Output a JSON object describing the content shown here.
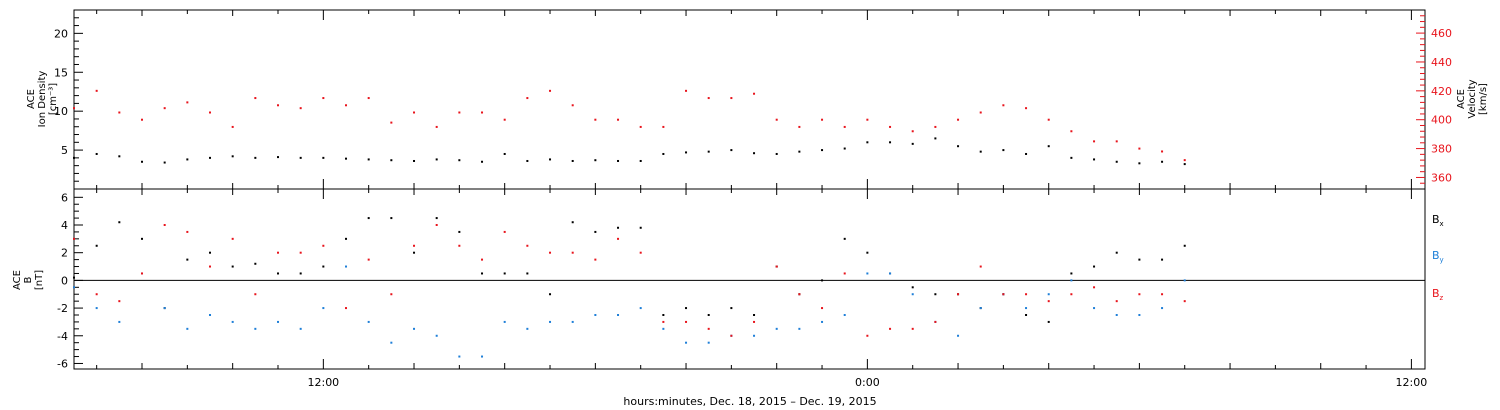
{
  "colors": {
    "black": "#000000",
    "red": "#e8141c",
    "blue": "#1e7fd8"
  },
  "footer_label": "hours:minutes, Dec. 18, 2015 – Dec. 19, 2015",
  "time_ticks": [
    {
      "hour": 12,
      "label": "12:00"
    },
    {
      "hour": 24,
      "label": "0:00"
    },
    {
      "hour": 36,
      "label": "12:00"
    }
  ],
  "chart_data": [
    {
      "type": "scatter",
      "panel": "top",
      "x_unit": "hours since Dec. 18, 2015 00:00",
      "xlim": [
        6.5,
        36.3
      ],
      "ylabel_left": [
        "ACE",
        "Ion Density",
        "[cm⁻³]"
      ],
      "ylim_left": [
        0,
        23
      ],
      "yticks_left": [
        5,
        10,
        15,
        20
      ],
      "ylabel_right": [
        "ACE",
        "Velocity",
        "[km/s]"
      ],
      "ylim_right": [
        352,
        476
      ],
      "yticks_right": [
        360,
        380,
        400,
        420,
        440,
        460
      ],
      "series": [
        {
          "axis": "left",
          "color": "#000000",
          "x": [
            6.5,
            7,
            7.5,
            8,
            8.5,
            9,
            9.5,
            10,
            10.5,
            11,
            11.5,
            12,
            12.5,
            13,
            13.5,
            14,
            14.5,
            15,
            15.5,
            16,
            16.5,
            17,
            17.5,
            18,
            18.5,
            19,
            19.5,
            20,
            20.5,
            21,
            21.5,
            22,
            22.5,
            23,
            23.5,
            24,
            24.5,
            25,
            25.5,
            26,
            26.5,
            27,
            27.5,
            28,
            28.5,
            29,
            29.5,
            30,
            30.5,
            31
          ],
          "values": [
            4.0,
            4.5,
            4.2,
            3.5,
            3.4,
            3.8,
            4.0,
            4.2,
            4.0,
            4.1,
            4.0,
            4.0,
            3.9,
            3.8,
            3.7,
            3.6,
            3.8,
            3.7,
            3.5,
            4.5,
            3.6,
            3.8,
            3.6,
            3.7,
            3.6,
            3.6,
            4.5,
            4.7,
            4.8,
            5.0,
            4.6,
            4.5,
            4.8,
            5.0,
            5.2,
            6.0,
            6.0,
            5.8,
            6.5,
            5.5,
            4.8,
            5.0,
            4.5,
            5.5,
            4.0,
            3.8,
            3.5,
            3.3,
            3.5,
            3.2
          ]
        },
        {
          "axis": "right",
          "color": "#e8141c",
          "x": [
            6.5,
            7,
            7.5,
            8,
            8.5,
            9,
            9.5,
            10,
            10.5,
            11,
            11.5,
            12,
            12.5,
            13,
            13.5,
            14,
            14.5,
            15,
            15.5,
            16,
            16.5,
            17,
            17.5,
            18,
            18.5,
            19,
            19.5,
            20,
            20.5,
            21,
            21.5,
            22,
            22.5,
            23,
            23.5,
            24,
            24.5,
            25,
            25.5,
            26,
            26.5,
            27,
            27.5,
            28,
            28.5,
            29,
            29.5,
            30,
            30.5,
            31
          ],
          "values": [
            408,
            420,
            405,
            400,
            408,
            412,
            405,
            395,
            415,
            410,
            408,
            415,
            410,
            415,
            398,
            405,
            395,
            405,
            405,
            400,
            415,
            420,
            410,
            400,
            400,
            395,
            395,
            420,
            415,
            415,
            418,
            400,
            395,
            400,
            395,
            400,
            395,
            392,
            395,
            400,
            405,
            410,
            408,
            400,
            392,
            385,
            385,
            380,
            378,
            372
          ]
        }
      ]
    },
    {
      "type": "scatter",
      "panel": "bottom",
      "x_unit": "hours since Dec. 18, 2015 00:00",
      "xlim": [
        6.5,
        36.3
      ],
      "ylabel": [
        "ACE",
        "B",
        "[nT]"
      ],
      "ylim": [
        -6.4,
        6.6
      ],
      "yticks": [
        -6,
        -4,
        -2,
        0,
        2,
        4,
        6
      ],
      "zero_line": true,
      "series": [
        {
          "name": "Bx",
          "color": "#000000",
          "x": [
            6.5,
            7,
            7.5,
            8,
            8.5,
            9,
            9.5,
            10,
            10.5,
            11,
            11.5,
            12,
            12.5,
            13,
            13.5,
            14,
            14.5,
            15,
            15.5,
            16,
            16.5,
            17,
            17.5,
            18,
            18.5,
            19,
            19.5,
            20,
            20.5,
            21,
            21.5,
            22,
            22.5,
            23,
            23.5,
            24,
            24.5,
            25,
            25.5,
            26,
            26.5,
            27,
            27.5,
            28,
            28.5,
            29,
            29.5,
            30,
            30.5,
            31
          ],
          "values": [
            0.2,
            2.5,
            4.2,
            3.0,
            -2.0,
            1.5,
            2.0,
            1.0,
            1.2,
            0.5,
            0.5,
            1.0,
            3.0,
            4.5,
            4.5,
            2.0,
            4.5,
            3.5,
            0.5,
            0.5,
            0.5,
            -1.0,
            4.2,
            3.5,
            3.8,
            3.8,
            -2.5,
            -2.0,
            -2.5,
            -2.0,
            -2.5,
            1.0,
            -1.0,
            0.0,
            3.0,
            2.0,
            0.5,
            -0.5,
            -1.0,
            -1.0,
            -2.0,
            -1.0,
            -2.5,
            -3.0,
            0.5,
            1.0,
            2.0,
            1.5,
            1.5,
            2.5
          ]
        },
        {
          "name": "By",
          "color": "#1e7fd8",
          "x": [
            6.5,
            7,
            7.5,
            8,
            8.5,
            9,
            9.5,
            10,
            10.5,
            11,
            11.5,
            12,
            12.5,
            13,
            13.5,
            14,
            14.5,
            15,
            15.5,
            16,
            16.5,
            17,
            17.5,
            18,
            18.5,
            19,
            19.5,
            20,
            20.5,
            21,
            21.5,
            22,
            22.5,
            23,
            23.5,
            24,
            24.5,
            25,
            25.5,
            26,
            26.5,
            27,
            27.5,
            28,
            28.5,
            29,
            29.5,
            30,
            30.5,
            31
          ],
          "values": [
            -0.5,
            -2.0,
            -3.0,
            0.5,
            -2.0,
            -3.5,
            -2.5,
            -3.0,
            -3.5,
            -3.0,
            -3.5,
            -2.0,
            1.0,
            -3.0,
            -4.5,
            -3.5,
            -4.0,
            -5.5,
            -5.5,
            -3.0,
            -3.5,
            -3.0,
            -3.0,
            -2.5,
            -2.5,
            -2.0,
            -3.5,
            -4.5,
            -4.5,
            -4.0,
            -4.0,
            -3.5,
            -3.5,
            -3.0,
            -2.5,
            0.5,
            0.5,
            -1.0,
            -3.0,
            -4.0,
            -2.0,
            -1.0,
            -2.0,
            -1.0,
            0.0,
            -2.0,
            -2.5,
            -2.5,
            -2.0,
            0.0
          ]
        },
        {
          "name": "Bz",
          "color": "#e8141c",
          "x": [
            6.5,
            7,
            7.5,
            8,
            8.5,
            9,
            9.5,
            10,
            10.5,
            11,
            11.5,
            12,
            12.5,
            13,
            13.5,
            14,
            14.5,
            15,
            15.5,
            16,
            16.5,
            17,
            17.5,
            18,
            18.5,
            19,
            19.5,
            20,
            20.5,
            21,
            21.5,
            22,
            22.5,
            23,
            23.5,
            24,
            24.5,
            25,
            25.5,
            26,
            26.5,
            27,
            27.5,
            28,
            28.5,
            29,
            29.5,
            30,
            30.5,
            31
          ],
          "values": [
            3.0,
            -1.0,
            -1.5,
            0.5,
            4.0,
            3.5,
            1.0,
            3.0,
            -1.0,
            2.0,
            2.0,
            2.5,
            -2.0,
            1.5,
            -1.0,
            2.5,
            4.0,
            2.5,
            1.5,
            3.5,
            2.5,
            2.0,
            2.0,
            1.5,
            3.0,
            2.0,
            -3.0,
            -3.0,
            -3.5,
            -4.0,
            -3.0,
            1.0,
            -1.0,
            -2.0,
            0.5,
            -4.0,
            -3.5,
            -3.5,
            -3.0,
            -1.0,
            1.0,
            -1.0,
            -1.0,
            -1.5,
            -1.0,
            -0.5,
            -1.5,
            -1.0,
            -1.0,
            -1.5
          ]
        }
      ]
    }
  ]
}
